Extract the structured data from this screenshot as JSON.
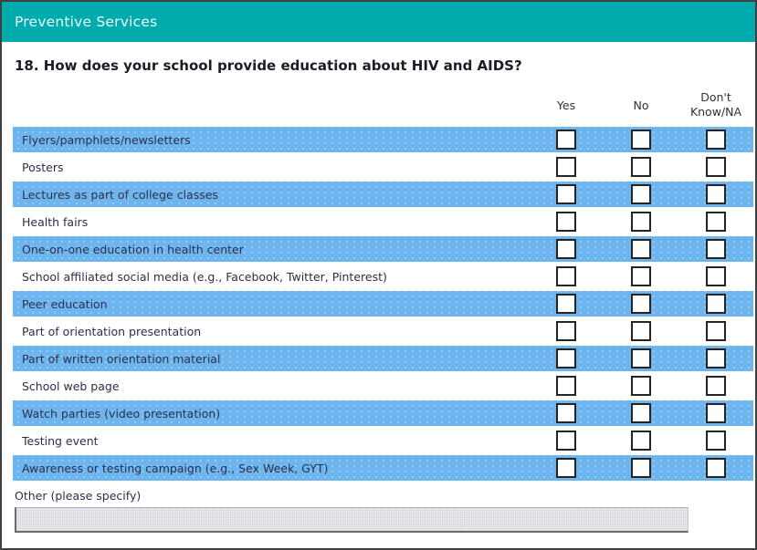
{
  "header": {
    "title": "Preventive Services"
  },
  "question": {
    "text": "18. How does your school provide education about HIV and AIDS?"
  },
  "table": {
    "columns": [
      {
        "id": "yes",
        "label": "Yes"
      },
      {
        "id": "no",
        "label": "No"
      },
      {
        "id": "dk",
        "label": "Don't Know/NA",
        "label_line1": "Don't",
        "label_line2": "Know/NA"
      }
    ],
    "rows": [
      "Flyers/pamphlets/newsletters",
      "Posters",
      "Lectures as part of college classes",
      "Health fairs",
      "One-on-one education in health center",
      "School affiliated social media (e.g., Facebook, Twitter, Pinterest)",
      "Peer education",
      "Part of orientation presentation",
      "Part of written orientation material",
      "School web page",
      "Watch parties (video presentation)",
      "Testing event",
      "Awareness or testing campaign (e.g., Sex Week, GYT)"
    ],
    "checkbox_states": "all-unchecked"
  },
  "other": {
    "label": "Other (please specify)",
    "value": ""
  },
  "colors": {
    "header_bg": "#00abae",
    "header_text": "#eafbfb",
    "row_alt_bg": "#6cb5ee",
    "row_text": "#2e2e4a",
    "checkbox_border": "#242424",
    "frame_border": "#3f3f3f"
  }
}
